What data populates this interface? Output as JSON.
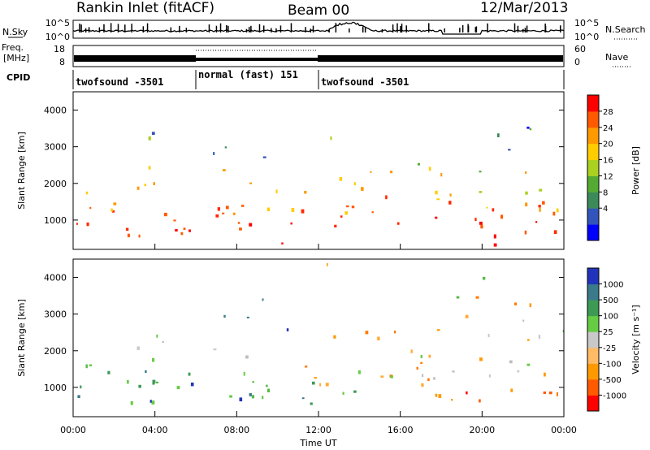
{
  "header": {
    "station": "Rankin Inlet (fitACF)",
    "beam": "Beam 00",
    "date": "12/Mar/2013"
  },
  "top_panels": {
    "nsky_label": "N.Sky",
    "nsearch_label": "N.Search",
    "nsky_ticks": [
      "10^5",
      "10^0"
    ],
    "nsearch_ticks": [
      "10^5",
      "10^0"
    ],
    "freq_label_1": "Freq.",
    "freq_label_2": "[MHz]",
    "freq_ticks": [
      "18",
      "8"
    ],
    "nave_label": "Nave",
    "nave_ticks": [
      "60",
      "0"
    ],
    "cpid_label": "CPID",
    "cpid_segments": [
      {
        "start_hour": 0,
        "end_hour": 6,
        "text": "twofsound -3501"
      },
      {
        "start_hour": 6,
        "end_hour": 12,
        "text": "normal (fast) 151"
      },
      {
        "start_hour": 12,
        "end_hour": 24,
        "text": "twofsound -3501"
      }
    ]
  },
  "chart_data": [
    {
      "type": "heatmap",
      "quantity": "power",
      "ylabel": "Slant Range [km]",
      "xlabel": "",
      "x_range_hours": [
        0,
        24
      ],
      "ylim": [
        200,
        4500
      ],
      "yticks": [
        1000,
        2000,
        3000,
        4000
      ],
      "colorbar_label": "Power [dB]",
      "colorbar_ticks": [
        "28",
        "24",
        "20",
        "16",
        "12",
        "8",
        "4"
      ],
      "colorbar_colors": [
        "#0000ff",
        "#3355bb",
        "#3c8a5a",
        "#55aa33",
        "#aad020",
        "#ffcc00",
        "#ff9900",
        "#ff5a00",
        "#ff0000"
      ]
    },
    {
      "type": "heatmap",
      "quantity": "velocity",
      "ylabel": "Slant Range [km]",
      "xlabel": "Time UT",
      "x_range_hours": [
        0,
        24
      ],
      "ylim": [
        200,
        4500
      ],
      "yticks": [
        1000,
        2000,
        3000,
        4000
      ],
      "xticks": [
        "00:00",
        "04:00",
        "08:00",
        "12:00",
        "16:00",
        "20:00",
        "00:00"
      ],
      "colorbar_label": "Velocity [m s⁻¹]",
      "colorbar_ticks": [
        "1000",
        "500",
        "100",
        "25",
        "-25",
        "-100",
        "-500",
        "-1000"
      ],
      "colorbar_colors": [
        "#ff0000",
        "#ff5a00",
        "#ff9900",
        "#ffbb66",
        "#c8c8c8",
        "#66cc44",
        "#3c9a55",
        "#3a7a8a",
        "#2233bb"
      ]
    }
  ]
}
